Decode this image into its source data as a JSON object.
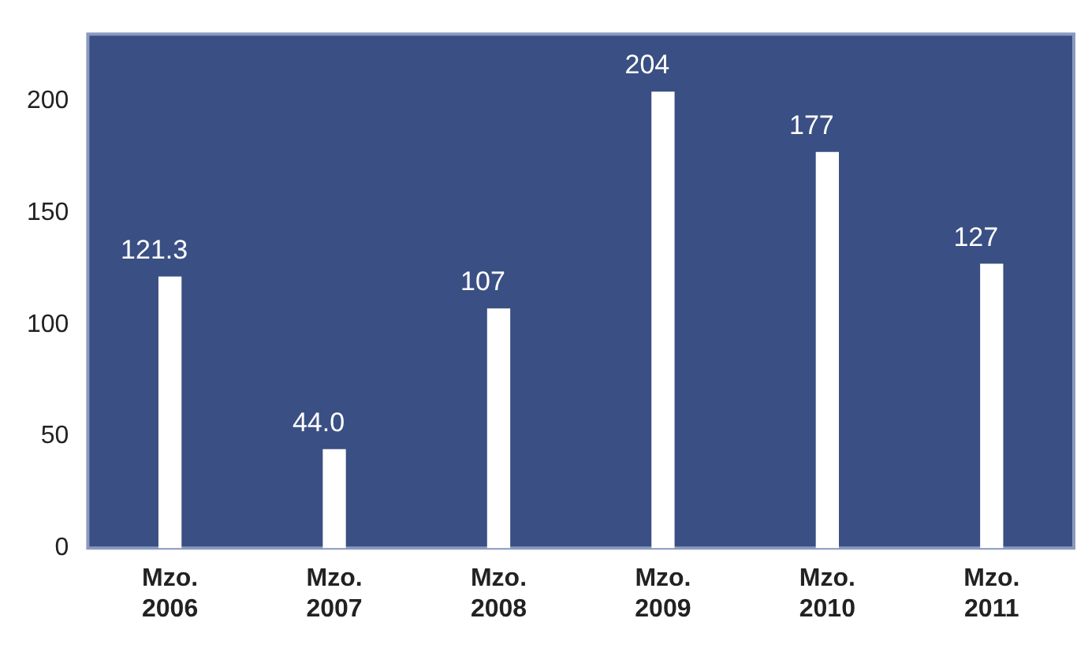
{
  "chart_data": {
    "type": "bar",
    "categories": [
      "Mzo. 2006",
      "Mzo. 2007",
      "Mzo. 2008",
      "Mzo. 2009",
      "Mzo. 2010",
      "Mzo. 2011"
    ],
    "values": [
      121.3,
      44.0,
      107,
      204,
      177,
      127
    ],
    "color": "#ffffff",
    "value_labels": [
      "121.3",
      "44.0",
      "107",
      "204",
      "177",
      "127"
    ],
    "ylim": [
      0,
      230
    ],
    "yticks": [
      0,
      50,
      100,
      150,
      200
    ],
    "grid": false,
    "legend": false
  }
}
